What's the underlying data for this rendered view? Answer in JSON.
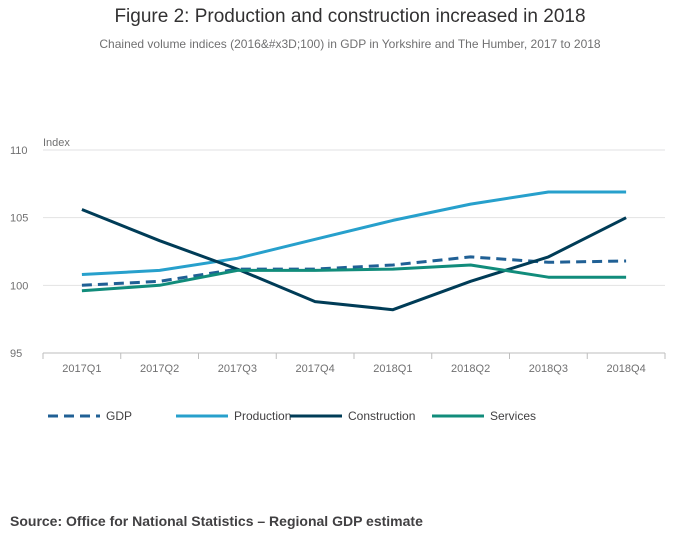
{
  "chart_data": {
    "type": "line",
    "title": "Figure 2: Production and construction increased in 2018",
    "subtitle": "Chained volume indices (2016&#x3D;100) in GDP in Yorkshire and The Humber, 2017 to 2018",
    "ylabel": "Index",
    "xlabel": "",
    "categories": [
      "2017Q1",
      "2017Q2",
      "2017Q3",
      "2017Q4",
      "2018Q1",
      "2018Q2",
      "2018Q3",
      "2018Q4"
    ],
    "ylim": [
      95,
      110
    ],
    "yticks": [
      95,
      100,
      105,
      110
    ],
    "grid": true,
    "legend_position": "bottom",
    "series": [
      {
        "name": "GDP",
        "color": "#206095",
        "dash": "dashed",
        "values": [
          100.0,
          100.3,
          101.2,
          101.2,
          101.5,
          102.1,
          101.7,
          101.8
        ]
      },
      {
        "name": "Production",
        "color": "#27a0cc",
        "dash": "solid",
        "values": [
          100.8,
          101.1,
          102.0,
          103.4,
          104.8,
          106.0,
          106.9,
          106.9
        ]
      },
      {
        "name": "Construction",
        "color": "#003c57",
        "dash": "solid",
        "values": [
          105.6,
          103.3,
          101.2,
          98.8,
          98.2,
          100.3,
          102.1,
          105.0
        ]
      },
      {
        "name": "Services",
        "color": "#118c7b",
        "dash": "solid",
        "values": [
          99.6,
          100.0,
          101.1,
          101.1,
          101.2,
          101.5,
          100.6,
          100.6
        ]
      }
    ]
  },
  "source": "Source: Office for National Statistics – Regional GDP estimate"
}
